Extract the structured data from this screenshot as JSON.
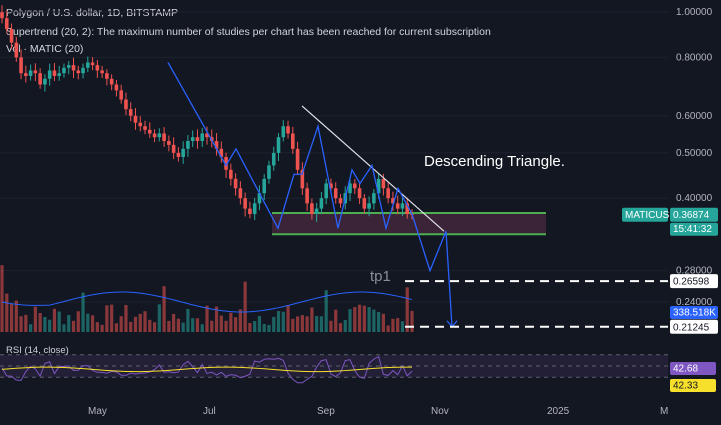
{
  "header": {
    "title": "Polygon / U.S. dollar, 1D, BITSTAMP",
    "study_line": "Supertrend (20, 2): The maximum number of studies per chart has been reached for current subscription",
    "vol_line": "Vol · MATIC (20)"
  },
  "colors": {
    "background": "#131722",
    "up": "#26a69a",
    "down": "#ef5350",
    "volume_ma": "#2962ff",
    "rsi_line": "#7e57c2",
    "rsi_ma": "#f7e02c",
    "pattern_lines": "#2962ff",
    "support_box": "#4caf50",
    "rsi_band": "#2a2340"
  },
  "chart_data": {
    "type": "candlestick",
    "symbol": "MATICUSD",
    "price_scale": "log",
    "price_ticks": [
      "1.00000",
      "0.80000",
      "0.60000",
      "0.50000",
      "0.40000",
      "0.28000",
      "0.24000"
    ],
    "x_ticks": [
      "May",
      "Jul",
      "Sep",
      "Nov",
      "2025",
      "M"
    ],
    "close_series": [
      0.97,
      0.92,
      0.86,
      0.8,
      0.74,
      0.73,
      0.75,
      0.74,
      0.7,
      0.72,
      0.75,
      0.73,
      0.74,
      0.76,
      0.77,
      0.75,
      0.74,
      0.76,
      0.78,
      0.77,
      0.75,
      0.74,
      0.72,
      0.7,
      0.68,
      0.65,
      0.62,
      0.6,
      0.58,
      0.57,
      0.56,
      0.55,
      0.54,
      0.55,
      0.53,
      0.52,
      0.5,
      0.49,
      0.51,
      0.53,
      0.54,
      0.53,
      0.55,
      0.54,
      0.53,
      0.51,
      0.49,
      0.46,
      0.44,
      0.42,
      0.4,
      0.38,
      0.37,
      0.39,
      0.41,
      0.44,
      0.47,
      0.5,
      0.54,
      0.57,
      0.55,
      0.51,
      0.46,
      0.42,
      0.39,
      0.37,
      0.38,
      0.4,
      0.43,
      0.42,
      0.4,
      0.39,
      0.41,
      0.43,
      0.42,
      0.4,
      0.38,
      0.39,
      0.41,
      0.44,
      0.42,
      0.4,
      0.39,
      0.38,
      0.39,
      0.37,
      0.36874
    ],
    "current_price": {
      "label": "MATICUSD",
      "value": "0.36874",
      "countdown": "15:41:32"
    },
    "levels": [
      {
        "label": "0.26598",
        "value": 0.26598
      },
      {
        "label": "0.21245",
        "value": 0.21245
      }
    ],
    "volume": {
      "ma_label": "338.518K"
    },
    "rsi": {
      "label": "RSI (14, close)",
      "value": "42.68",
      "ma_value": "42.33",
      "upper": 70,
      "lower": 30,
      "ylim": [
        0,
        100
      ]
    },
    "annotations": {
      "pattern": "Descending Triangle.",
      "target": "tp1"
    }
  }
}
